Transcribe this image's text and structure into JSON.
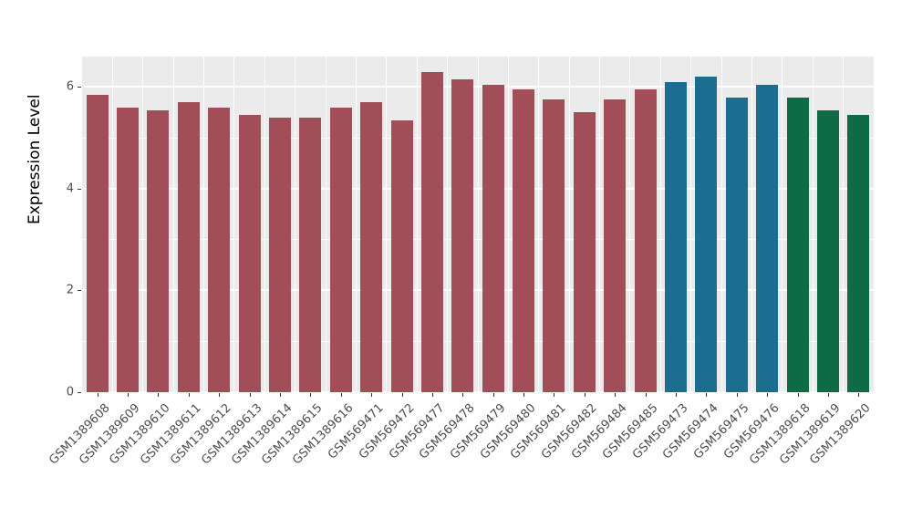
{
  "chart_data": {
    "type": "bar",
    "title": "",
    "xlabel": "",
    "ylabel": "Expression Level",
    "ylim": [
      0,
      6.6
    ],
    "yticks": [
      0,
      2,
      4,
      6
    ],
    "minor_yticks": [
      1,
      3,
      5
    ],
    "grid": true,
    "legend_position": "none",
    "panel_background": "#EBEBEB",
    "grid_color": "#FFFFFF",
    "tick_label_color": "#4D4D4D",
    "categories": [
      "GSM1389608",
      "GSM1389609",
      "GSM1389610",
      "GSM1389611",
      "GSM1389612",
      "GSM1389613",
      "GSM1389614",
      "GSM1389615",
      "GSM1389616",
      "GSM569471",
      "GSM569472",
      "GSM569477",
      "GSM569478",
      "GSM569479",
      "GSM569480",
      "GSM569481",
      "GSM569482",
      "GSM569484",
      "GSM569485",
      "GSM569473",
      "GSM569474",
      "GSM569475",
      "GSM569476",
      "GSM1389618",
      "GSM1389619",
      "GSM1389620"
    ],
    "values": [
      5.85,
      5.6,
      5.55,
      5.7,
      5.6,
      5.45,
      5.4,
      5.4,
      5.6,
      5.7,
      5.35,
      6.3,
      6.15,
      6.05,
      5.95,
      5.75,
      5.5,
      5.75,
      5.95,
      6.1,
      6.2,
      5.8,
      6.05,
      5.8,
      5.55,
      5.45
    ],
    "bar_colors": [
      "#A24E58",
      "#A24E58",
      "#A24E58",
      "#A24E58",
      "#A24E58",
      "#A24E58",
      "#A24E58",
      "#A24E58",
      "#A24E58",
      "#A24E58",
      "#A24E58",
      "#A24E58",
      "#A24E58",
      "#A24E58",
      "#A24E58",
      "#A24E58",
      "#A24E58",
      "#A24E58",
      "#A24E58",
      "#1B6E8F",
      "#1B6E8F",
      "#1B6E8F",
      "#1B6E8F",
      "#0F6B45",
      "#0F6B45",
      "#0F6B45"
    ],
    "group_colors": {
      "group_1": "#A24E58",
      "group_2": "#1B6E8F",
      "group_3": "#0F6B45"
    }
  }
}
